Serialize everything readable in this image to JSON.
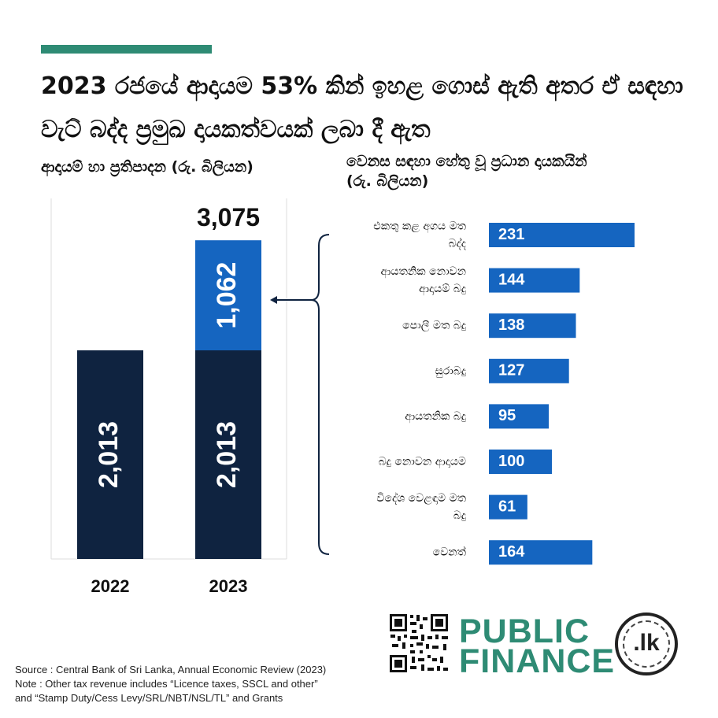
{
  "headline": "2023 රජයේ ආදායම 53% කින් ඉහළ ගොස් ඇති අතර ඒ සඳහා වැට් බද්ද ප්‍රමුඛ දායකත්වයක් ලබා දී ඇත",
  "left_subtitle": "ආදායම් හා ප්‍රතිපාදන (රු. බිලියන)",
  "right_subtitle": "වෙනස සඳහා හේතු වූ ප්‍රධාන දායකයින් (රු. බිලියන)",
  "colors": {
    "accent": "#2e8b74",
    "base": "#0f2340",
    "increase": "#1565c0"
  },
  "chart_data": [
    {
      "type": "bar",
      "stacked": true,
      "categories": [
        "2022",
        "2023"
      ],
      "series": [
        {
          "values": [
            2013,
            2013
          ]
        },
        {
          "values": [
            0,
            1062
          ]
        }
      ],
      "series_labels": [
        [
          "2,013",
          "2,013"
        ],
        [
          "",
          "1,062"
        ]
      ],
      "totals": [
        null,
        "3,075"
      ],
      "grid": false
    },
    {
      "type": "bar",
      "orientation": "horizontal",
      "categories": [
        "එකතු කළ අගය මත බද්ද",
        "ආයතනික නොවන ආදායම් බදු",
        "පොලී මත බදු",
        "සුරාබදු",
        "ආයතනික බදු",
        "බදු නොවන ආදායම",
        "විදේශ වෙළඳාම මත බදු",
        "වෙනත්"
      ],
      "category_lines": [
        [
          "එකතු කළ අගය මත",
          "බද්ද"
        ],
        [
          "ආයතනික නොවන",
          "ආදායම් බදු"
        ],
        [
          "පොලී මත බදු"
        ],
        [
          "සුරාබදු"
        ],
        [
          "ආයතනික බදු"
        ],
        [
          "බදු නොවන ආදායම"
        ],
        [
          "විදේශ වෙළඳාම මත",
          "බදු"
        ],
        [
          "වෙනත්"
        ]
      ],
      "values": [
        231,
        144,
        138,
        127,
        95,
        100,
        61,
        164
      ],
      "grid": false
    }
  ],
  "footer": {
    "source": "Source : Central Bank of Sri Lanka, Annual Economic Review (2023)",
    "note1": "Note : Other tax revenue includes “Licence taxes, SSCL and other”",
    "note2": "and “Stamp Duty/Cess Levy/SRL/NBT/NSL/TL” and Grants"
  },
  "logo": {
    "line1": "PUBLIC",
    "line2": "FINANCE",
    "seal": ".lk"
  }
}
